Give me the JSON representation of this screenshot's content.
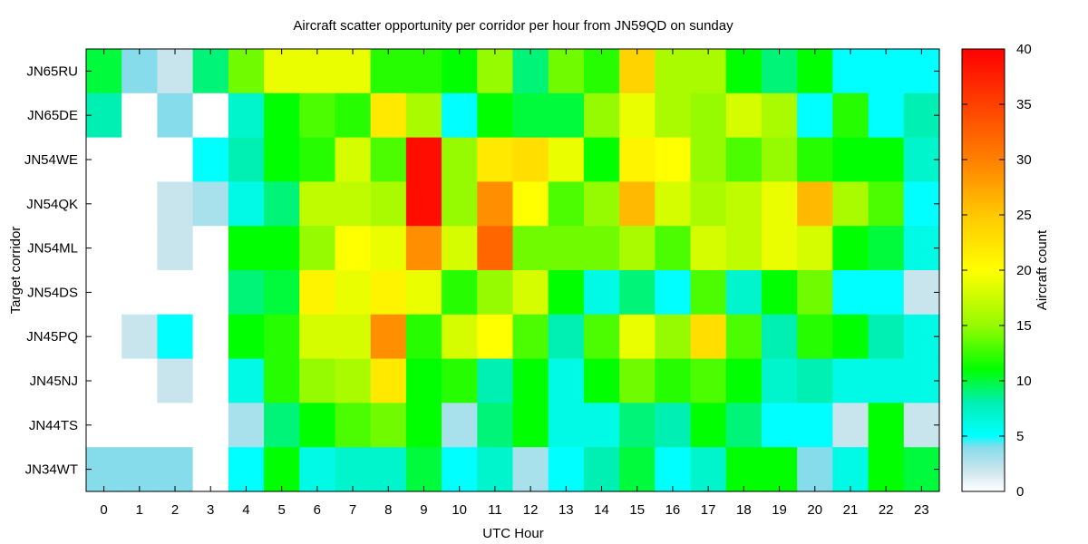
{
  "chart_data": {
    "type": "heatmap",
    "title": "Aircraft scatter opportunity per corridor per hour from JN59QD on sunday",
    "xlabel": "UTC Hour",
    "ylabel": "Target corridor",
    "x": [
      "0",
      "1",
      "2",
      "3",
      "4",
      "5",
      "6",
      "7",
      "8",
      "9",
      "10",
      "11",
      "12",
      "13",
      "14",
      "15",
      "16",
      "17",
      "18",
      "19",
      "20",
      "21",
      "22",
      "23"
    ],
    "y": [
      "JN65RU",
      "JN65DE",
      "JN54WE",
      "JN54QK",
      "JN54ML",
      "JN54DS",
      "JN45PQ",
      "JN45NJ",
      "JN44TS",
      "JN34WT"
    ],
    "values": [
      [
        10,
        4,
        2,
        9,
        14,
        19,
        19,
        19,
        12,
        12,
        11,
        15,
        9,
        14,
        12,
        24,
        16,
        16,
        11,
        9,
        11,
        5,
        5,
        5
      ],
      [
        8,
        0,
        4,
        0,
        7,
        11,
        13,
        12,
        22,
        16,
        5,
        11,
        10,
        10,
        15,
        19,
        16,
        15,
        18,
        16,
        5,
        12,
        5,
        8
      ],
      [
        0,
        0,
        0,
        5,
        8,
        11,
        12,
        18,
        13,
        39,
        15,
        22,
        23,
        19,
        11,
        21,
        20,
        15,
        13,
        15,
        12,
        11,
        11,
        7
      ],
      [
        0,
        0,
        2,
        3,
        6,
        9,
        17,
        17,
        16,
        39,
        15,
        29,
        20,
        13,
        15,
        26,
        18,
        16,
        17,
        19,
        26,
        16,
        13,
        5
      ],
      [
        0,
        0,
        2,
        0,
        11,
        11,
        15,
        20,
        19,
        29,
        18,
        32,
        14,
        14,
        14,
        16,
        13,
        18,
        17,
        19,
        18,
        11,
        10,
        6
      ],
      [
        0,
        0,
        0,
        0,
        9,
        10,
        21,
        19,
        21,
        19,
        12,
        15,
        18,
        11,
        6,
        9,
        5,
        13,
        7,
        11,
        14,
        5,
        5,
        2
      ],
      [
        0,
        2,
        5,
        0,
        11,
        12,
        18,
        18,
        29,
        12,
        18,
        20,
        13,
        8,
        13,
        19,
        15,
        23,
        13,
        8,
        12,
        11,
        8,
        6
      ],
      [
        0,
        0,
        2,
        0,
        6,
        12,
        15,
        16,
        22,
        11,
        12,
        8,
        11,
        6,
        11,
        14,
        12,
        13,
        11,
        7,
        8,
        6,
        6,
        6
      ],
      [
        0,
        0,
        0,
        0,
        3,
        9,
        11,
        13,
        14,
        11,
        3,
        9,
        11,
        6,
        6,
        9,
        8,
        11,
        9,
        5,
        5,
        2,
        11,
        2
      ],
      [
        4,
        4,
        4,
        0,
        5,
        11,
        6,
        7,
        7,
        10,
        5,
        7,
        3,
        5,
        8,
        10,
        5,
        7,
        11,
        11,
        4,
        6,
        11,
        10
      ]
    ],
    "colorbar": {
      "label": "Aircraft count",
      "min": 0,
      "max": 40,
      "ticks": [
        0,
        5,
        10,
        15,
        20,
        25,
        30,
        35,
        40
      ]
    },
    "legend": "right colorbar",
    "grid": false
  }
}
